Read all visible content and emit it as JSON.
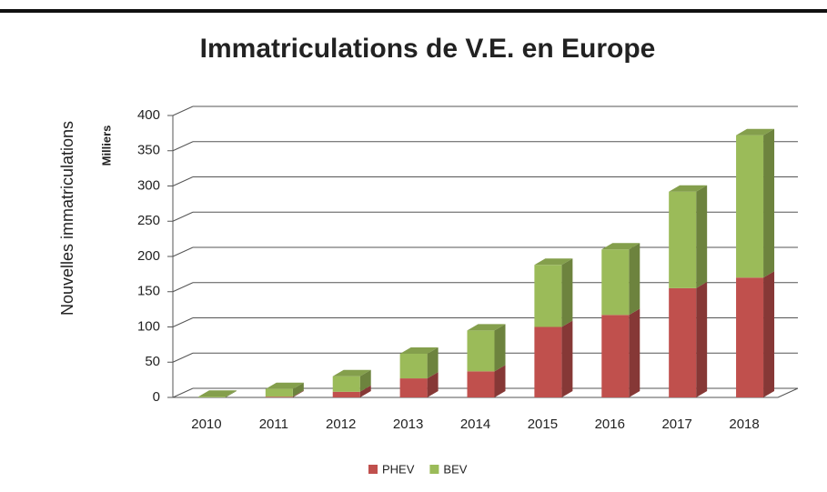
{
  "chart_data": {
    "type": "bar",
    "stacked": true,
    "title": "Immatriculations de V.E. en Europe",
    "y_label": "Nouvelles immatriculations",
    "y_unit": "Milliers",
    "categories": [
      "2010",
      "2011",
      "2012",
      "2013",
      "2014",
      "2015",
      "2016",
      "2017",
      "2018"
    ],
    "series": [
      {
        "name": "PHEV",
        "color": "#c0504d",
        "values": [
          0,
          1,
          8,
          27,
          37,
          100,
          117,
          155,
          170
        ]
      },
      {
        "name": "BEV",
        "color": "#9bbb59",
        "values": [
          1,
          11,
          22,
          35,
          58,
          88,
          93,
          137,
          202
        ]
      }
    ],
    "ylim": [
      0,
      400
    ],
    "yticks": [
      0,
      50,
      100,
      150,
      200,
      250,
      300,
      350,
      400
    ],
    "grid": true,
    "legend": "bottom"
  }
}
